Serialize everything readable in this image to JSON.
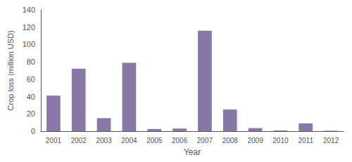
{
  "chart_data": {
    "type": "bar",
    "categories": [
      "2001",
      "2002",
      "2003",
      "2004",
      "2005",
      "2006",
      "2007",
      "2008",
      "2009",
      "2010",
      "2011",
      "2012"
    ],
    "values": [
      41,
      72,
      15,
      79,
      2.5,
      3,
      116,
      25,
      3.5,
      0.8,
      9,
      0.5
    ],
    "color": "#8878a8",
    "xlabel": "Year",
    "ylabel": "Crop loss (million USD)",
    "ylim": [
      0,
      140
    ],
    "yticks": [
      0,
      20,
      40,
      60,
      80,
      100,
      120,
      140
    ],
    "grid": false
  }
}
